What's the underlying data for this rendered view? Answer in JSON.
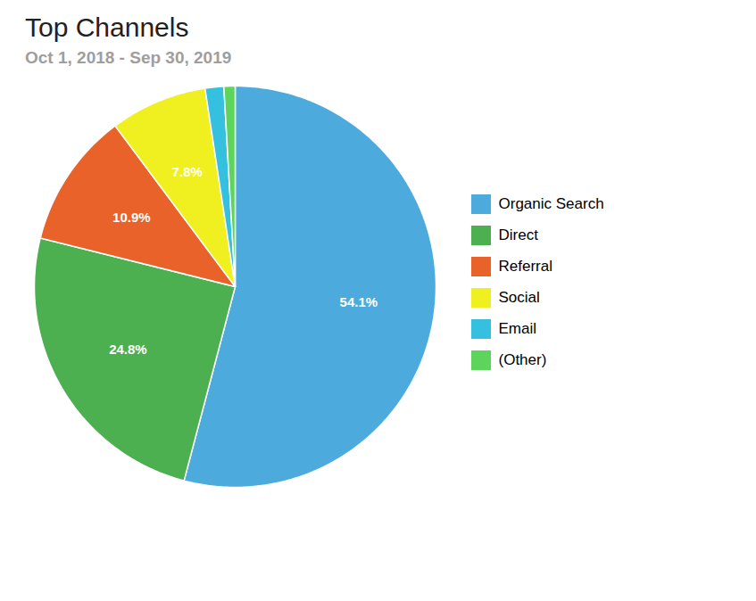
{
  "chart_data": {
    "type": "pie",
    "title": "Top Channels",
    "subtitle": "Oct 1, 2018 - Sep 30, 2019",
    "categories": [
      "Organic Search",
      "Direct",
      "Referral",
      "Social",
      "Email",
      "(Other)"
    ],
    "values": [
      54.1,
      24.8,
      10.9,
      7.8,
      1.5,
      0.9
    ],
    "colors": [
      "#4DAADC",
      "#4CAF50",
      "#E8622A",
      "#F0F020",
      "#35C0E0",
      "#5DD55D"
    ],
    "data_labels": true,
    "value_labels": [
      "54.1%",
      "24.8%",
      "10.9%",
      "7.8%",
      null,
      null
    ],
    "legend": "right"
  }
}
